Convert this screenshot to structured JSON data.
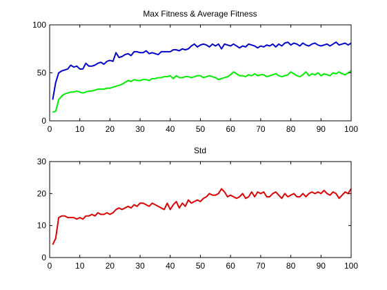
{
  "chart_data": [
    {
      "type": "line",
      "title": "Max Fitness & Average Fitness",
      "xlabel": "",
      "ylabel": "",
      "xlim": [
        0,
        100
      ],
      "ylim": [
        0,
        100
      ],
      "grid": false,
      "xticks": [
        "0",
        "10",
        "20",
        "30",
        "40",
        "50",
        "60",
        "70",
        "80",
        "90",
        "100"
      ],
      "yticks": [
        "0",
        "50",
        "100"
      ],
      "x": [
        1,
        2,
        3,
        4,
        5,
        6,
        7,
        8,
        9,
        10,
        11,
        12,
        13,
        14,
        15,
        16,
        17,
        18,
        19,
        20,
        21,
        22,
        23,
        24,
        25,
        26,
        27,
        28,
        29,
        30,
        31,
        32,
        33,
        34,
        35,
        36,
        37,
        38,
        39,
        40,
        41,
        42,
        43,
        44,
        45,
        46,
        47,
        48,
        49,
        50,
        51,
        52,
        53,
        54,
        55,
        56,
        57,
        58,
        59,
        60,
        61,
        62,
        63,
        64,
        65,
        66,
        67,
        68,
        69,
        70,
        71,
        72,
        73,
        74,
        75,
        76,
        77,
        78,
        79,
        80,
        81,
        82,
        83,
        84,
        85,
        86,
        87,
        88,
        89,
        90,
        91,
        92,
        93,
        94,
        95,
        96,
        97,
        98,
        99,
        100
      ],
      "series": [
        {
          "color": "#0000cc",
          "values": [
            22,
            40,
            50,
            52,
            53,
            54,
            58,
            56,
            57,
            54,
            54,
            60,
            57,
            57,
            58,
            60,
            61,
            59,
            62,
            63,
            62,
            71,
            66,
            67,
            69,
            70,
            68,
            72,
            72,
            71,
            71,
            73,
            70,
            71,
            70,
            69,
            72,
            72,
            72,
            72,
            74,
            74,
            73,
            75,
            74,
            75,
            78,
            80,
            77,
            79,
            80,
            79,
            77,
            80,
            78,
            80,
            75,
            80,
            79,
            78,
            80,
            78,
            76,
            78,
            77,
            80,
            79,
            78,
            76,
            78,
            77,
            79,
            78,
            80,
            77,
            80,
            78,
            81,
            82,
            79,
            81,
            80,
            78,
            81,
            79,
            78,
            80,
            81,
            79,
            78,
            79,
            80,
            78,
            80,
            82,
            79,
            80,
            81,
            79,
            81
          ]
        },
        {
          "color": "#00ee00",
          "values": [
            9,
            10,
            22,
            26,
            28,
            29,
            30,
            30,
            31,
            30,
            29,
            30,
            31,
            31,
            32,
            33,
            33,
            33,
            34,
            34,
            35,
            36,
            37,
            38,
            40,
            42,
            41,
            43,
            42,
            42,
            43,
            43,
            42,
            44,
            44,
            45,
            45,
            46,
            46,
            47,
            44,
            47,
            45,
            45,
            46,
            46,
            45,
            46,
            47,
            47,
            45,
            46,
            47,
            46,
            45,
            43,
            44,
            45,
            46,
            48,
            51,
            49,
            47,
            47,
            46,
            48,
            47,
            49,
            47,
            48,
            48,
            46,
            47,
            48,
            49,
            47,
            46,
            47,
            48,
            51,
            49,
            47,
            46,
            48,
            51,
            47,
            49,
            48,
            50,
            47,
            49,
            48,
            47,
            50,
            49,
            51,
            49,
            48,
            50,
            52
          ]
        },
        {
          "color": "#dd0000",
          "values": [
            4,
            6,
            12.5,
            13,
            13,
            12.5,
            12.5,
            12.5,
            12,
            12.5,
            12,
            13,
            13,
            13.5,
            13,
            14,
            13.5,
            13.5,
            14,
            13.5,
            14,
            15,
            15.5,
            15,
            15.5,
            16,
            15.5,
            16.5,
            16,
            17,
            17,
            16.5,
            16,
            17,
            16.5,
            16,
            15.5,
            15,
            17,
            15,
            16.5,
            17.5,
            15.5,
            17,
            16,
            18,
            17,
            17.5,
            18,
            17.5,
            18.5,
            19,
            20,
            19.5,
            19.5,
            20,
            21.5,
            20.5,
            19,
            19.5,
            19,
            18.5,
            19,
            20,
            18.5,
            19,
            20.5,
            19,
            20.5,
            20,
            20.5,
            19,
            19,
            20,
            20.5,
            19.5,
            18.5,
            20,
            19,
            19.5,
            20,
            19,
            19,
            20,
            19,
            20,
            20.5,
            20,
            20.5,
            20,
            21,
            20,
            19.5,
            20.5,
            20,
            18.5,
            19.5,
            20.5,
            20,
            21.5
          ]
        }
      ]
    },
    {
      "type": "line",
      "title": "Std",
      "xlabel": "",
      "ylabel": "",
      "xlim": [
        0,
        100
      ],
      "ylim": [
        0,
        30
      ],
      "grid": false,
      "xticks": [
        "0",
        "10",
        "20",
        "30",
        "40",
        "50",
        "60",
        "70",
        "80",
        "90",
        "100"
      ],
      "yticks": [
        "0",
        "10",
        "20",
        "30"
      ],
      "series_ref": 2
    }
  ]
}
